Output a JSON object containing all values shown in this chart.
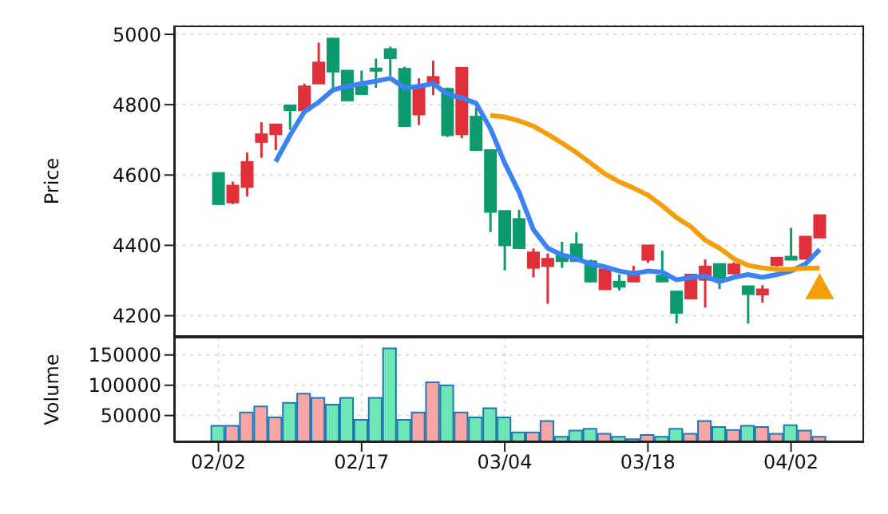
{
  "chart_data": [
    {
      "type": "candlestick",
      "ylabel": "Price",
      "categories": [
        null,
        null,
        null,
        null,
        null,
        null,
        null,
        null,
        null,
        null,
        null,
        null,
        null,
        null,
        null,
        null,
        null,
        null,
        null,
        null,
        null,
        null,
        null,
        null,
        null,
        null,
        null,
        null,
        null,
        null,
        null,
        null,
        null,
        null,
        null,
        null,
        null,
        null,
        null,
        null,
        null,
        null,
        null
      ],
      "ohlc": [
        [
          4517,
          4606,
          4517,
          4606
        ],
        [
          4570,
          4581,
          4517,
          4522
        ],
        [
          4637,
          4664,
          4539,
          4566
        ],
        [
          4716,
          4750,
          4649,
          4694
        ],
        [
          4744,
          4744,
          4671,
          4716
        ],
        [
          4784,
          4798,
          4729,
          4798
        ],
        [
          4852,
          4860,
          4780,
          4784
        ],
        [
          4920,
          4976,
          4860,
          4860
        ],
        [
          4894,
          4988,
          4845,
          4988
        ],
        [
          4812,
          4897,
          4812,
          4897
        ],
        [
          4830,
          4897,
          4830,
          4852
        ],
        [
          4897,
          4931,
          4848,
          4903
        ],
        [
          4932,
          4965,
          4882,
          4958
        ],
        [
          4739,
          4908,
          4739,
          4902
        ],
        [
          4852,
          4875,
          4742,
          4772
        ],
        [
          4879,
          4925,
          4827,
          4860
        ],
        [
          4713,
          4849,
          4708,
          4845
        ],
        [
          4905,
          4905,
          4705,
          4716
        ],
        [
          4671,
          4792,
          4671,
          4766
        ],
        [
          4495,
          4671,
          4438,
          4671
        ],
        [
          4400,
          4498,
          4329,
          4498
        ],
        [
          4392,
          4501,
          4392,
          4475
        ],
        [
          4380,
          4391,
          4309,
          4336
        ],
        [
          4362,
          4377,
          4234,
          4341
        ],
        [
          4355,
          4410,
          4336,
          4374
        ],
        [
          4355,
          4437,
          4355,
          4403
        ],
        [
          4297,
          4359,
          4294,
          4355
        ],
        [
          4332,
          4332,
          4275,
          4275
        ],
        [
          4282,
          4317,
          4272,
          4297
        ],
        [
          4324,
          4342,
          4297,
          4297
        ],
        [
          4400,
          4400,
          4350,
          4359
        ],
        [
          4297,
          4385,
          4297,
          4314
        ],
        [
          4208,
          4269,
          4178,
          4269
        ],
        [
          4317,
          4317,
          4249,
          4249
        ],
        [
          4340,
          4360,
          4223,
          4302
        ],
        [
          4308,
          4347,
          4276,
          4347
        ],
        [
          4346,
          4352,
          4317,
          4320
        ],
        [
          4261,
          4284,
          4178,
          4284
        ],
        [
          4275,
          4287,
          4237,
          4260
        ],
        [
          4365,
          4365,
          4339,
          4344
        ],
        [
          4359,
          4450,
          4359,
          4368
        ],
        [
          4425,
          4425,
          4362,
          4362
        ],
        [
          4486,
          4486,
          4422,
          4422
        ]
      ],
      "colors": [
        "#0c9b6e",
        "#e0303a",
        "#e0303a",
        "#e0303a",
        "#e0303a",
        "#0c9b6e",
        "#e0303a",
        "#e0303a",
        "#0c9b6e",
        "#0c9b6e",
        "#0c9b6e",
        "#0c9b6e",
        "#0c9b6e",
        "#0c9b6e",
        "#e0303a",
        "#e0303a",
        "#0c9b6e",
        "#e0303a",
        "#0c9b6e",
        "#0c9b6e",
        "#0c9b6e",
        "#0c9b6e",
        "#e0303a",
        "#e0303a",
        "#0c9b6e",
        "#0c9b6e",
        "#0c9b6e",
        "#e0303a",
        "#0c9b6e",
        "#e0303a",
        "#e0303a",
        "#0c9b6e",
        "#0c9b6e",
        "#e0303a",
        "#e0303a",
        "#0c9b6e",
        "#e0303a",
        "#0c9b6e",
        "#e0303a",
        "#e0303a",
        "#0c9b6e",
        "#e0303a",
        "#e0303a"
      ],
      "series": [
        {
          "type": "line",
          "color": "#3b82f6",
          "values": [
            null,
            null,
            null,
            null,
            4638,
            4713,
            4780,
            4807,
            4842,
            4852,
            4860,
            4867,
            4875,
            4848,
            4852,
            4860,
            4830,
            4819,
            4804,
            4732,
            4634,
            4551,
            4445,
            4392,
            4373,
            4362,
            4347,
            4339,
            4327,
            4320,
            4327,
            4324,
            4302,
            4309,
            4312,
            4297,
            4309,
            4317,
            4309,
            4317,
            4327,
            4347,
            4388
          ]
        },
        {
          "type": "line",
          "color": "#f59e0b",
          "values": [
            null,
            null,
            null,
            null,
            null,
            null,
            null,
            null,
            null,
            null,
            null,
            null,
            null,
            null,
            null,
            null,
            null,
            null,
            null,
            4769,
            4765,
            4754,
            4739,
            4716,
            4691,
            4664,
            4634,
            4603,
            4581,
            4563,
            4543,
            4513,
            4479,
            4453,
            4415,
            4392,
            4362,
            4343,
            4336,
            4332,
            4332,
            4335,
            4336
          ]
        },
        {
          "type": "scatter",
          "marker": "triangle",
          "color": "#f59e0b",
          "values": [
            null,
            null,
            null,
            null,
            null,
            null,
            null,
            null,
            null,
            null,
            null,
            null,
            null,
            null,
            null,
            null,
            null,
            null,
            null,
            null,
            null,
            null,
            null,
            null,
            null,
            null,
            null,
            null,
            null,
            null,
            null,
            null,
            null,
            null,
            null,
            null,
            null,
            null,
            null,
            null,
            null,
            null,
            4280
          ]
        }
      ],
      "ylim": [
        4140,
        5025
      ],
      "yticks": [
        4200,
        4400,
        4600,
        4800,
        5000
      ],
      "grid": true,
      "tick_labels": "y"
    },
    {
      "type": "bar",
      "ylabel": "Volume",
      "categories": [
        "02/02",
        null,
        null,
        null,
        null,
        null,
        null,
        null,
        null,
        null,
        "02/17",
        null,
        null,
        null,
        null,
        null,
        null,
        null,
        null,
        null,
        "03/04",
        null,
        null,
        null,
        null,
        null,
        null,
        null,
        null,
        null,
        "03/18",
        null,
        null,
        null,
        null,
        null,
        null,
        null,
        null,
        null,
        "04/02",
        null,
        null
      ],
      "values": [
        33000,
        33000,
        55000,
        65000,
        47000,
        71000,
        86000,
        79000,
        68000,
        79000,
        43000,
        79000,
        161000,
        43000,
        55000,
        105000,
        100000,
        55000,
        47000,
        62000,
        47000,
        22000,
        22000,
        41000,
        15000,
        25000,
        28000,
        20000,
        15000,
        11000,
        18000,
        15000,
        28000,
        20000,
        41000,
        31000,
        26000,
        33000,
        31000,
        20000,
        34000,
        25000,
        15000
      ],
      "colors": [
        "#6ee7b7",
        "#f8a5a5",
        "#f8a5a5",
        "#f8a5a5",
        "#f8a5a5",
        "#6ee7b7",
        "#f8a5a5",
        "#f8a5a5",
        "#6ee7b7",
        "#6ee7b7",
        "#6ee7b7",
        "#6ee7b7",
        "#6ee7b7",
        "#6ee7b7",
        "#f8a5a5",
        "#f8a5a5",
        "#6ee7b7",
        "#f8a5a5",
        "#6ee7b7",
        "#6ee7b7",
        "#6ee7b7",
        "#6ee7b7",
        "#f8a5a5",
        "#f8a5a5",
        "#6ee7b7",
        "#6ee7b7",
        "#6ee7b7",
        "#f8a5a5",
        "#6ee7b7",
        "#f8a5a5",
        "#f8a5a5",
        "#6ee7b7",
        "#6ee7b7",
        "#f8a5a5",
        "#f8a5a5",
        "#6ee7b7",
        "#f8a5a5",
        "#6ee7b7",
        "#f8a5a5",
        "#f8a5a5",
        "#6ee7b7",
        "#f8a5a5",
        "#f8a5a5"
      ],
      "ylim": [
        6000,
        180000
      ],
      "yticks": [
        50000,
        100000,
        150000
      ],
      "grid": true
    }
  ]
}
